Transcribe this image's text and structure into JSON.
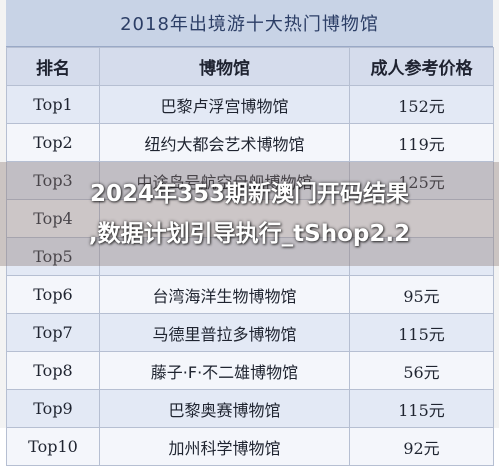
{
  "table_title": "2018年出境游十大热门博物馆",
  "headers": {
    "rank": "排名",
    "museum": "博物馆",
    "price": "成人参考价格"
  },
  "rows": [
    {
      "rank": "Top1",
      "museum": "巴黎卢浮宫博物馆",
      "price": "152元"
    },
    {
      "rank": "Top2",
      "museum": "纽约大都会艺术博物馆",
      "price": "119元"
    },
    {
      "rank": "Top3",
      "museum": "中途岛号航空母舰博物馆",
      "price": "125元"
    },
    {
      "rank": "Top4",
      "museum": "",
      "price": ""
    },
    {
      "rank": "Top5",
      "museum": "",
      "price": ""
    },
    {
      "rank": "Top6",
      "museum": "台湾海洋生物博物馆",
      "price": "95元"
    },
    {
      "rank": "Top7",
      "museum": "马德里普拉多博物馆",
      "price": "115元"
    },
    {
      "rank": "Top8",
      "museum": "藤子·F·不二雄博物馆",
      "price": "56元"
    },
    {
      "rank": "Top9",
      "museum": "巴黎奥赛博物馆",
      "price": "115元"
    },
    {
      "rank": "Top10",
      "museum": "加州科学博物馆",
      "price": "92元"
    }
  ],
  "overlay": {
    "line1": "2024年353期新澳门开码结果",
    "line2": ",数据计划引导执行_tShop2.2"
  },
  "colors": {
    "title_background": "#c8d3e6",
    "header_background": "#d5dcec",
    "row_odd": "#e3e9f5",
    "row_even": "#f4f6fb",
    "border": "#b6bfd2",
    "overlay_text": "#ffffff"
  }
}
